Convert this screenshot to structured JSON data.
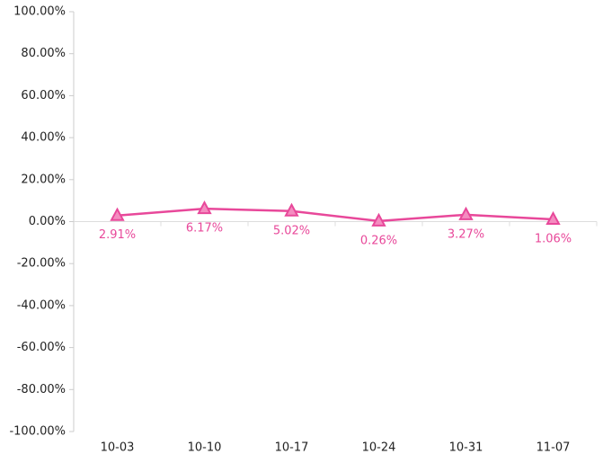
{
  "chart_data": {
    "type": "line",
    "categories": [
      "10-03",
      "10-10",
      "10-17",
      "10-24",
      "10-31",
      "11-07"
    ],
    "values": [
      2.91,
      6.17,
      5.02,
      0.26,
      3.27,
      1.06
    ],
    "value_labels": [
      "2.91%",
      "6.17%",
      "5.02%",
      "0.26%",
      "3.27%",
      "1.06%"
    ],
    "color": "#e8489a",
    "marker": "triangle",
    "ylim": [
      -100,
      100
    ],
    "yticks": [
      {
        "value": -100,
        "label": "-100.00%"
      },
      {
        "value": -80,
        "label": "-80.00%"
      },
      {
        "value": -60,
        "label": "-60.00%"
      },
      {
        "value": -40,
        "label": "-40.00%"
      },
      {
        "value": -20,
        "label": "-20.00%"
      },
      {
        "value": 0,
        "label": "0.00%"
      },
      {
        "value": 20,
        "label": "20.00%"
      },
      {
        "value": 40,
        "label": "40.00%"
      },
      {
        "value": 60,
        "label": "60.00%"
      },
      {
        "value": 80,
        "label": "80.00%"
      },
      {
        "value": 100,
        "label": "100.00%"
      }
    ],
    "grid": false
  }
}
